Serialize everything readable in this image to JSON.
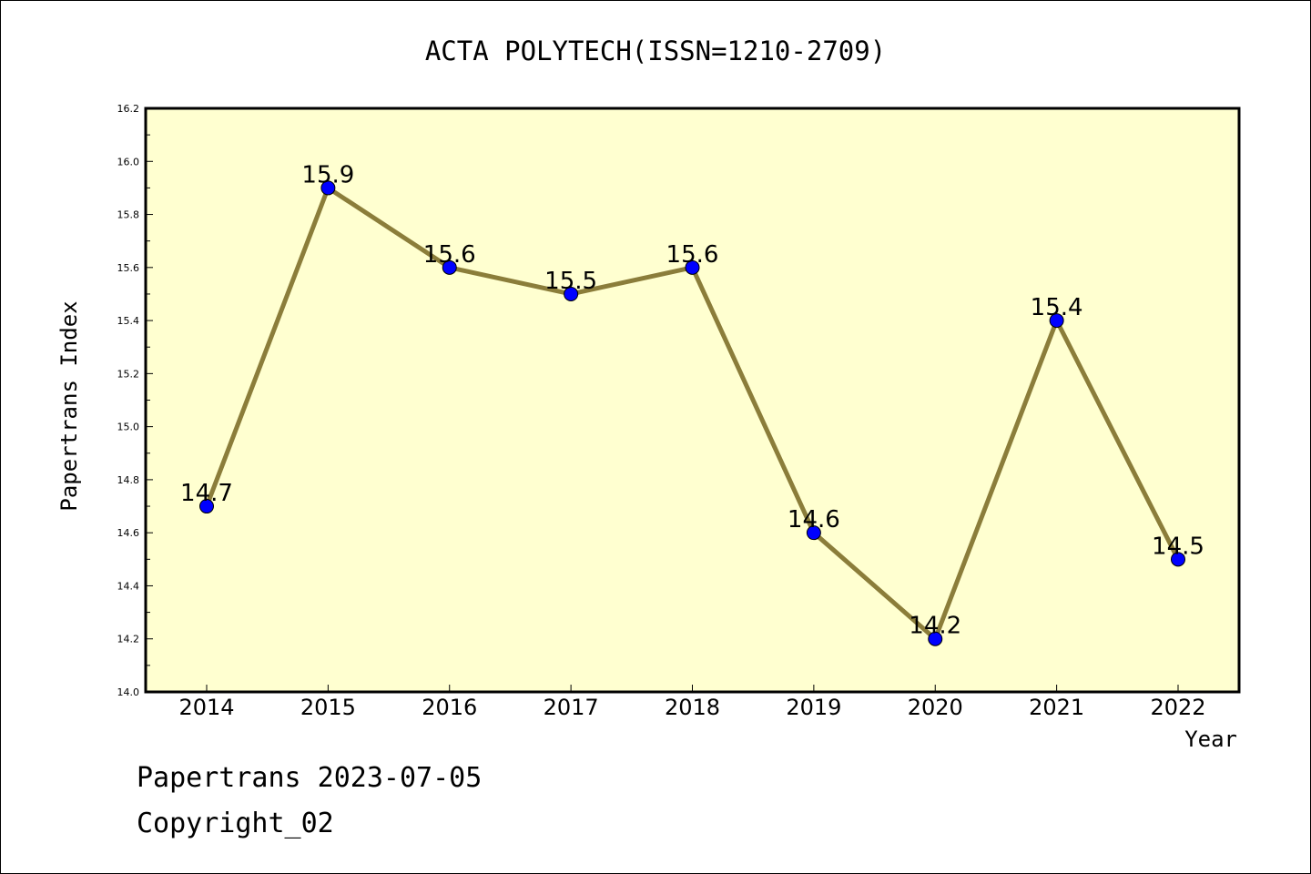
{
  "chart_data": {
    "type": "line",
    "title": "ACTA POLYTECH(ISSN=1210-2709)",
    "xlabel": "Year",
    "ylabel": "Papertrans Index",
    "categories": [
      "2014",
      "2015",
      "2016",
      "2017",
      "2018",
      "2019",
      "2020",
      "2021",
      "2022"
    ],
    "series": [
      {
        "values": [
          14.7,
          15.9,
          15.6,
          15.5,
          15.6,
          14.6,
          14.2,
          15.4,
          14.5
        ],
        "data_labels": [
          "14.7",
          "15.9",
          "15.6",
          "15.5",
          "15.6",
          "14.6",
          "14.2",
          "15.4",
          "14.5"
        ]
      }
    ],
    "ylim": [
      14.0,
      16.2
    ],
    "yticks": [
      "14.0",
      "14.2",
      "14.4",
      "14.6",
      "14.8",
      "15.0",
      "15.2",
      "15.4",
      "15.6",
      "15.8",
      "16.0",
      "16.2"
    ],
    "grid": false,
    "colors": {
      "plot_background": "#ffffd0",
      "line": "#8b7d3a",
      "marker": "#0000ff"
    }
  },
  "footer": {
    "line1": "Papertrans 2023-07-05",
    "line2": "Copyright_02"
  }
}
